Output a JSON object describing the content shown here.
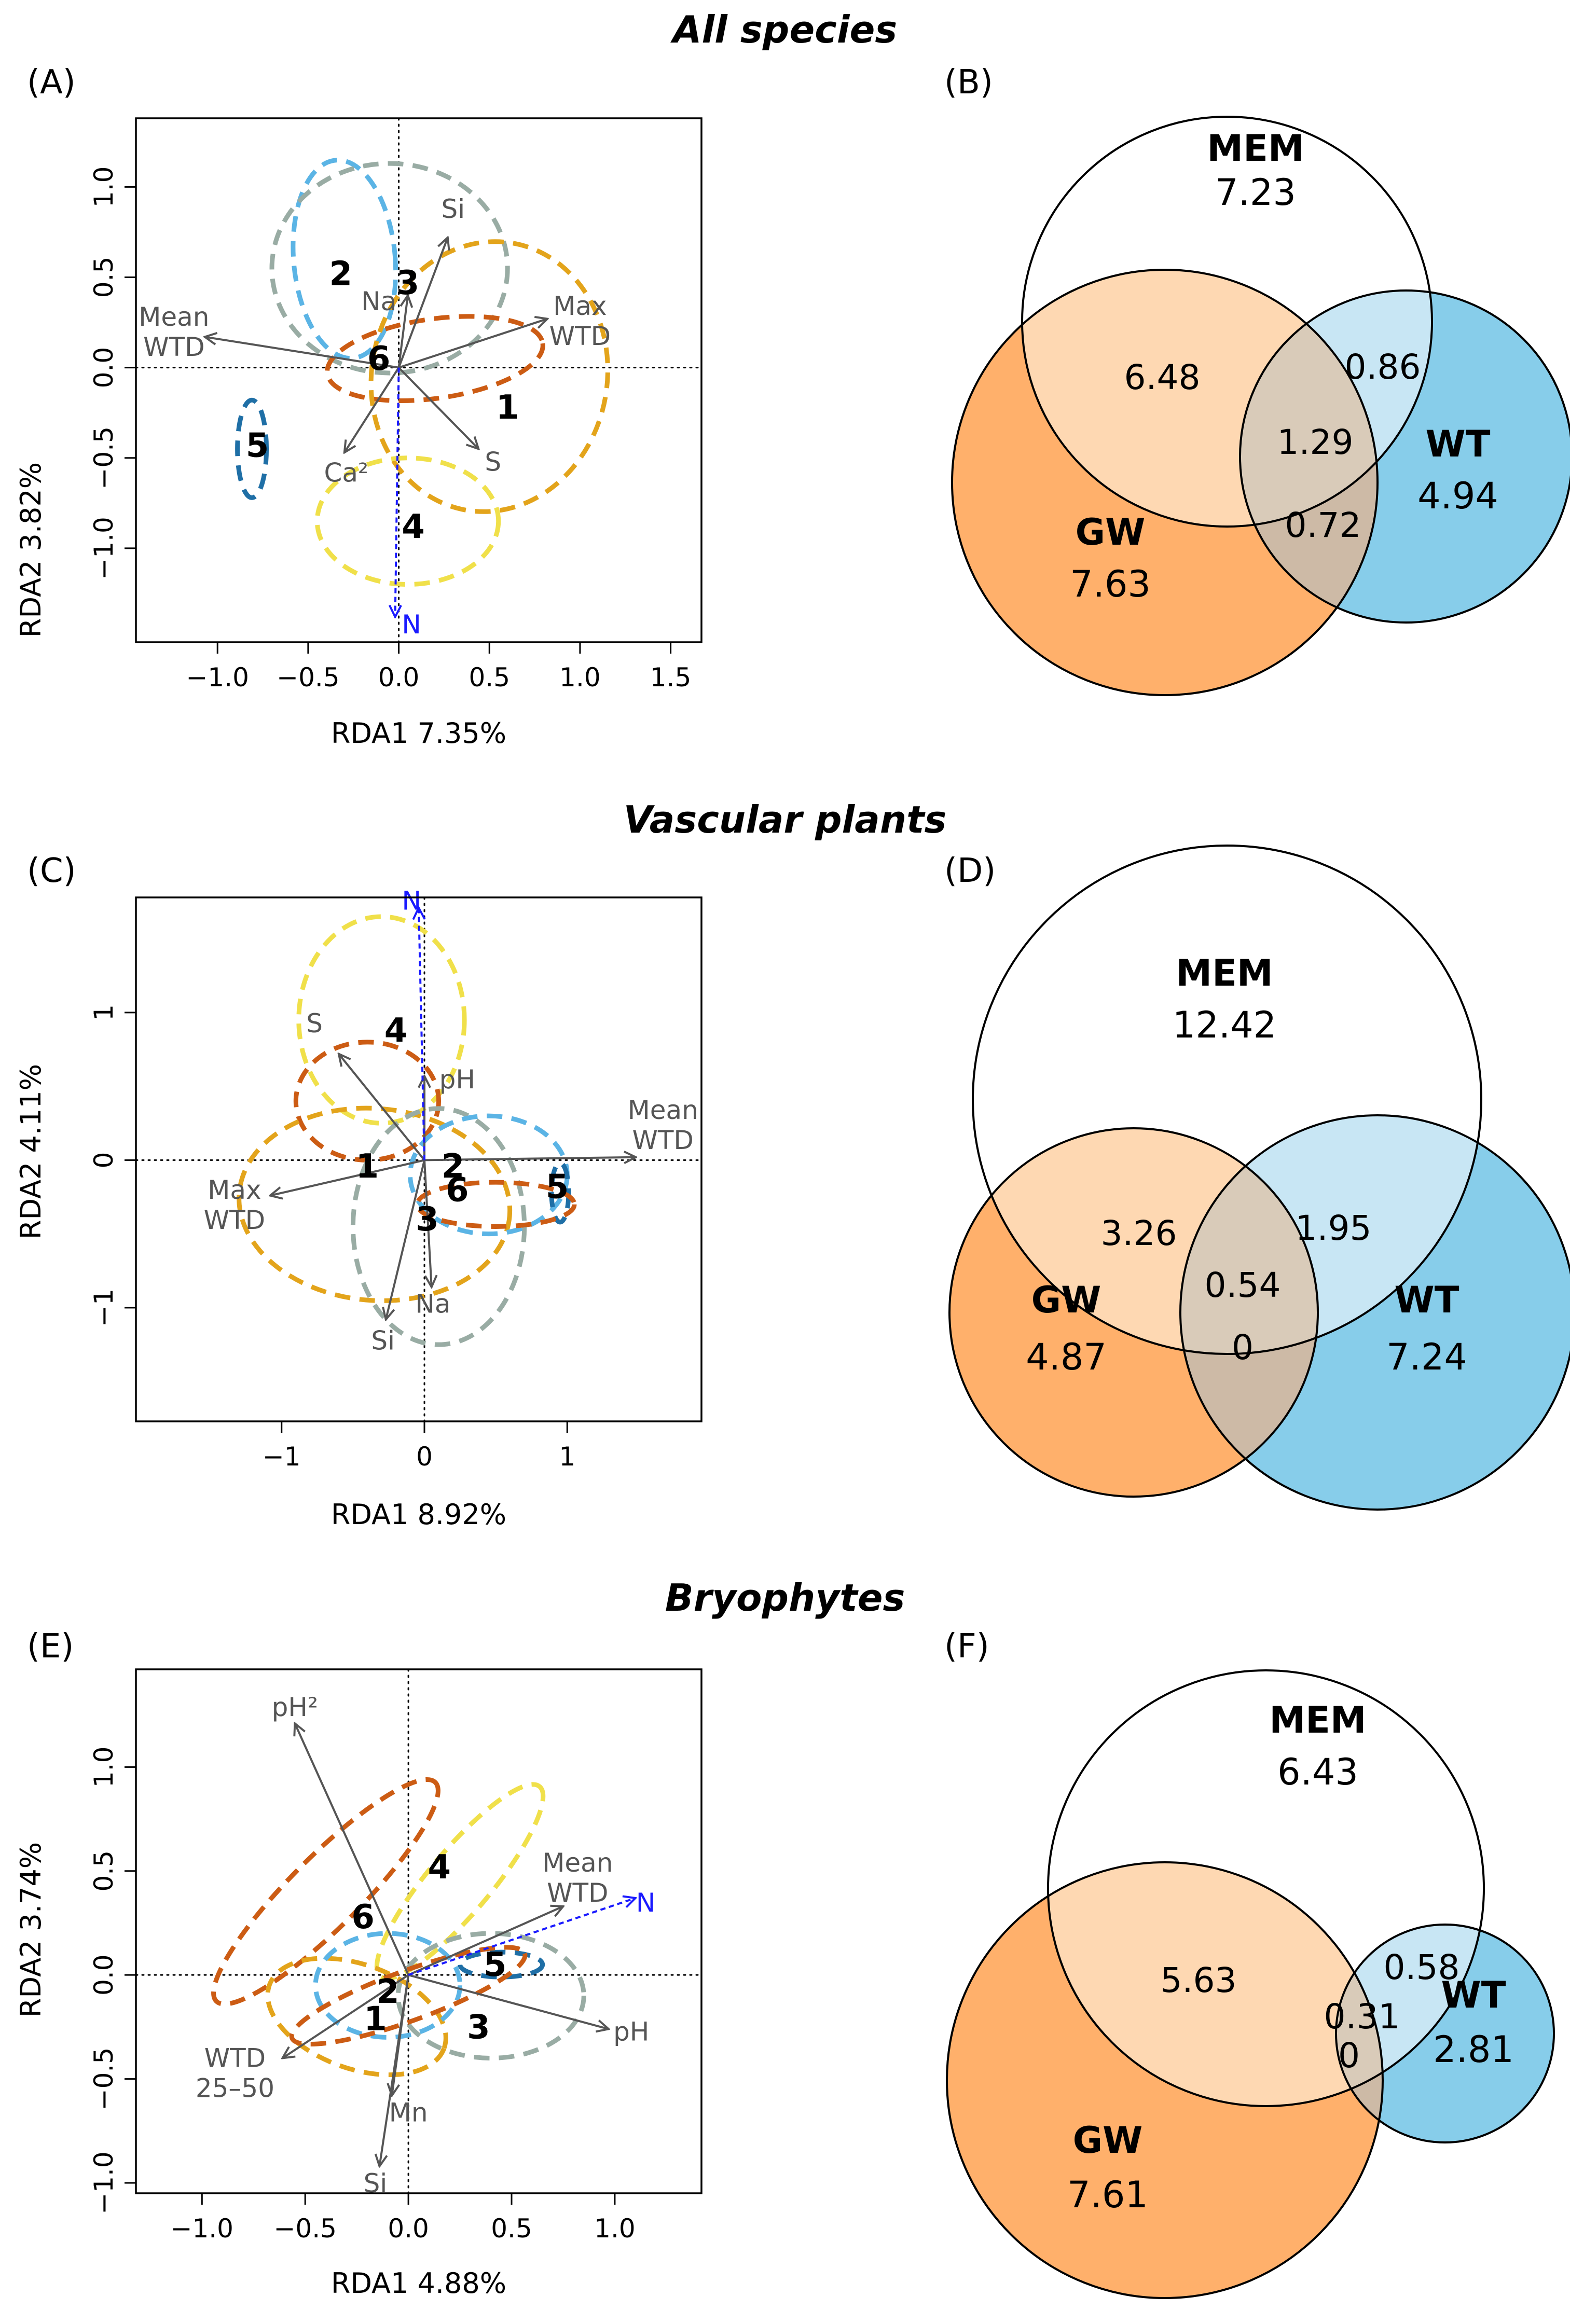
{
  "section_titles": [
    "All species",
    "Vascular plants",
    "Bryophytes"
  ],
  "panel_letters": [
    "(A)",
    "(B)",
    "(C)",
    "(D)",
    "(E)",
    "(F)"
  ],
  "colors": {
    "axis": "#000000",
    "arrow": "#555555",
    "N_arrow": "#1a1aff",
    "GW_fill": "#ffb06b",
    "WT_fill": "#87cdea",
    "MEM_fill": "#ffffff",
    "GW_MEM_fill": "#fed8b2",
    "MEM_WT_fill": "#c8e6f4",
    "GW_WT_fill": "#cdbaa6",
    "all_three_fill": "#d9cbb9",
    "groups": {
      "1": "#e3a41b",
      "2": "#5bb4e5",
      "3": "#99aca4",
      "4": "#f0e04a",
      "5": "#1f6fa6",
      "6": "#cc5c14"
    }
  },
  "chart_data": [
    {
      "panel": "(A)",
      "type": "scatter",
      "subtype": "rda-biplot",
      "title": "All species",
      "xlabel": "RDA1 7.35%",
      "ylabel": "RDA2 3.82%",
      "xlim": [
        -1.45,
        1.67
      ],
      "ylim": [
        -1.52,
        1.38
      ],
      "xticks": [
        -1.0,
        -0.5,
        0.0,
        0.5,
        1.0,
        1.5
      ],
      "xtick_labels": [
        "−1.0",
        "−0.5",
        "0.0",
        "0.5",
        "1.0",
        "1.5"
      ],
      "yticks": [
        -1.0,
        -0.5,
        0.0,
        0.5,
        1.0
      ],
      "ytick_labels": [
        "−1.0",
        "−0.5",
        "0.0",
        "0.5",
        "1.0"
      ],
      "arrows": [
        {
          "label": [
            "Mean",
            "WTD"
          ],
          "x": -1.07,
          "y": 0.17,
          "lx": -1.24,
          "ly": 0.2,
          "color": "arrow",
          "dashed": false
        },
        {
          "label": [
            "Max",
            "WTD"
          ],
          "x": 0.82,
          "y": 0.27,
          "lx": 1.0,
          "ly": 0.26,
          "color": "arrow",
          "dashed": false
        },
        {
          "label": [
            "Si"
          ],
          "x": 0.27,
          "y": 0.72,
          "lx": 0.3,
          "ly": 0.88,
          "color": "arrow",
          "dashed": false
        },
        {
          "label": [
            "Na"
          ],
          "x": 0.05,
          "y": 0.4,
          "lx": -0.11,
          "ly": 0.37,
          "color": "arrow",
          "dashed": false
        },
        {
          "label": [
            "S"
          ],
          "x": 0.44,
          "y": -0.45,
          "lx": 0.52,
          "ly": -0.52,
          "color": "arrow",
          "dashed": false
        },
        {
          "label": [
            "Ca²"
          ],
          "x": -0.3,
          "y": -0.47,
          "lx": -0.29,
          "ly": -0.58,
          "color": "arrow",
          "dashed": false
        },
        {
          "label": [
            "N"
          ],
          "x": -0.02,
          "y": -1.38,
          "lx": 0.07,
          "ly": -1.42,
          "color": "N_arrow",
          "dashed": true
        }
      ],
      "ellipses": [
        {
          "group": "2",
          "cx": -0.3,
          "cy": 0.6,
          "rx": 0.28,
          "ry": 0.55,
          "rot": -5
        },
        {
          "group": "3",
          "cx": -0.05,
          "cy": 0.55,
          "rx": 0.65,
          "ry": 0.58,
          "rot": 0
        },
        {
          "group": "6",
          "cx": 0.2,
          "cy": 0.05,
          "rx": 0.6,
          "ry": 0.22,
          "rot": -8
        },
        {
          "group": "1",
          "cx": 0.5,
          "cy": -0.05,
          "rx": 0.65,
          "ry": 0.75,
          "rot": 10
        },
        {
          "group": "4",
          "cx": 0.05,
          "cy": -0.85,
          "rx": 0.5,
          "ry": 0.35,
          "rot": 0
        },
        {
          "group": "5",
          "cx": -0.81,
          "cy": -0.45,
          "rx": 0.08,
          "ry": 0.27,
          "rot": 0
        }
      ],
      "group_labels": [
        {
          "text": "1",
          "x": 0.6,
          "y": -0.22
        },
        {
          "text": "2",
          "x": -0.32,
          "y": 0.52
        },
        {
          "text": "3",
          "x": 0.05,
          "y": 0.47
        },
        {
          "text": "4",
          "x": 0.08,
          "y": -0.88
        },
        {
          "text": "5",
          "x": -0.78,
          "y": -0.43
        },
        {
          "text": "6",
          "x": -0.11,
          "y": 0.05
        }
      ]
    },
    {
      "panel": "(C)",
      "type": "scatter",
      "subtype": "rda-biplot",
      "title": "Vascular plants",
      "xlabel": "RDA1 8.92%",
      "ylabel": "RDA2 4.11%",
      "xlim": [
        -2.02,
        1.94
      ],
      "ylim": [
        -1.77,
        1.78
      ],
      "xticks": [
        -1,
        0,
        1
      ],
      "xtick_labels": [
        "−1",
        "0",
        "1"
      ],
      "yticks": [
        -1,
        0,
        1
      ],
      "ytick_labels": [
        "−1",
        "0",
        "1"
      ],
      "arrows": [
        {
          "label": [
            "Mean",
            "WTD"
          ],
          "x": 1.48,
          "y": 0.02,
          "lx": 1.67,
          "ly": 0.24,
          "color": "arrow",
          "dashed": false
        },
        {
          "label": [
            "Max",
            "WTD"
          ],
          "x": -1.08,
          "y": -0.24,
          "lx": -1.33,
          "ly": -0.3,
          "color": "arrow",
          "dashed": false
        },
        {
          "label": [
            "S"
          ],
          "x": -0.6,
          "y": 0.72,
          "lx": -0.77,
          "ly": 0.93,
          "color": "arrow",
          "dashed": false
        },
        {
          "label": [
            "pH"
          ],
          "x": 0.0,
          "y": 0.57,
          "lx": 0.23,
          "ly": 0.55,
          "color": "arrow",
          "dashed": false
        },
        {
          "label": [
            "Na"
          ],
          "x": 0.05,
          "y": -0.86,
          "lx": 0.06,
          "ly": -0.97,
          "color": "arrow",
          "dashed": false
        },
        {
          "label": [
            "Si"
          ],
          "x": -0.27,
          "y": -1.08,
          "lx": -0.29,
          "ly": -1.22,
          "color": "arrow",
          "dashed": false
        },
        {
          "label": [
            "N"
          ],
          "x": -0.04,
          "y": 1.71,
          "lx": -0.09,
          "ly": 1.76,
          "color": "N_arrow",
          "dashed": true
        }
      ],
      "ellipses": [
        {
          "group": "4",
          "cx": -0.3,
          "cy": 0.95,
          "rx": 0.58,
          "ry": 0.7,
          "rot": 0
        },
        {
          "group": "6",
          "cx": -0.4,
          "cy": 0.4,
          "rx": 0.5,
          "ry": 0.4,
          "rot": 0
        },
        {
          "group": "1",
          "cx": -0.35,
          "cy": -0.3,
          "rx": 0.95,
          "ry": 0.65,
          "rot": 5
        },
        {
          "group": "3",
          "cx": 0.1,
          "cy": -0.45,
          "rx": 0.6,
          "ry": 0.8,
          "rot": 0
        },
        {
          "group": "2",
          "cx": 0.45,
          "cy": -0.1,
          "rx": 0.55,
          "ry": 0.4,
          "rot": 0
        },
        {
          "group": "5",
          "cx": 0.95,
          "cy": -0.22,
          "rx": 0.06,
          "ry": 0.2,
          "rot": 0
        },
        {
          "group": "6",
          "cx": 0.5,
          "cy": -0.3,
          "rx": 0.55,
          "ry": 0.15,
          "rot": 0
        }
      ],
      "group_labels": [
        {
          "text": "1",
          "x": -0.4,
          "y": -0.04
        },
        {
          "text": "2",
          "x": 0.2,
          "y": -0.04
        },
        {
          "text": "3",
          "x": 0.02,
          "y": -0.4
        },
        {
          "text": "4",
          "x": -0.2,
          "y": 0.88
        },
        {
          "text": "5",
          "x": 0.93,
          "y": -0.18
        },
        {
          "text": "6",
          "x": 0.23,
          "y": -0.2
        }
      ]
    },
    {
      "panel": "(E)",
      "type": "scatter",
      "subtype": "rda-biplot",
      "title": "Bryophytes",
      "xlabel": "RDA1 4.88%",
      "ylabel": "RDA2 3.74%",
      "xlim": [
        -1.32,
        1.42
      ],
      "ylim": [
        -1.05,
        1.47
      ],
      "xticks": [
        -1.0,
        -0.5,
        0.0,
        0.5,
        1.0
      ],
      "xtick_labels": [
        "−1.0",
        "−0.5",
        "0.0",
        "0.5",
        "1.0"
      ],
      "yticks": [
        -1.0,
        -0.5,
        0.0,
        0.5,
        1.0
      ],
      "ytick_labels": [
        "−1.0",
        "−0.5",
        "0.0",
        "0.5",
        "1.0"
      ],
      "arrows": [
        {
          "label": [
            "pH²"
          ],
          "x": -0.55,
          "y": 1.21,
          "lx": -0.55,
          "ly": 1.29,
          "color": "arrow",
          "dashed": false
        },
        {
          "label": [
            "Mean",
            "WTD"
          ],
          "x": 0.75,
          "y": 0.33,
          "lx": 0.82,
          "ly": 0.47,
          "color": "arrow",
          "dashed": false
        },
        {
          "label": [
            "pH"
          ],
          "x": 0.97,
          "y": -0.26,
          "lx": 1.08,
          "ly": -0.27,
          "color": "arrow",
          "dashed": false
        },
        {
          "label": [
            "WTD",
            "25–50"
          ],
          "x": -0.61,
          "y": -0.4,
          "lx": -0.84,
          "ly": -0.47,
          "color": "arrow",
          "dashed": false
        },
        {
          "label": [
            "Mn"
          ],
          "x": -0.08,
          "y": -0.58,
          "lx": 0.0,
          "ly": -0.66,
          "color": "arrow",
          "dashed": false
        },
        {
          "label": [
            "Si"
          ],
          "x": -0.14,
          "y": -0.92,
          "lx": -0.16,
          "ly": -1.0,
          "color": "arrow",
          "dashed": false
        },
        {
          "label": [
            "N"
          ],
          "x": 1.1,
          "y": 0.37,
          "lx": 1.15,
          "ly": 0.35,
          "color": "N_arrow",
          "dashed": true
        }
      ],
      "ellipses": [
        {
          "group": "6",
          "cx": -0.4,
          "cy": 0.4,
          "rx": 0.75,
          "ry": 0.17,
          "rot": -45
        },
        {
          "group": "4",
          "cx": 0.25,
          "cy": 0.45,
          "rx": 0.6,
          "ry": 0.15,
          "rot": -50
        },
        {
          "group": "3",
          "cx": 0.4,
          "cy": -0.1,
          "rx": 0.45,
          "ry": 0.3,
          "rot": 0
        },
        {
          "group": "1",
          "cx": -0.25,
          "cy": -0.2,
          "rx": 0.45,
          "ry": 0.25,
          "rot": 20
        },
        {
          "group": "2",
          "cx": -0.1,
          "cy": -0.05,
          "rx": 0.35,
          "ry": 0.25,
          "rot": 0
        },
        {
          "group": "5",
          "cx": 0.45,
          "cy": 0.05,
          "rx": 0.2,
          "ry": 0.06,
          "rot": 0
        },
        {
          "group": "6",
          "cx": 0.0,
          "cy": -0.1,
          "rx": 0.6,
          "ry": 0.12,
          "rot": -20
        }
      ],
      "group_labels": [
        {
          "text": "1",
          "x": -0.16,
          "y": -0.21
        },
        {
          "text": "2",
          "x": -0.1,
          "y": -0.08
        },
        {
          "text": "3",
          "x": 0.34,
          "y": -0.25
        },
        {
          "text": "4",
          "x": 0.15,
          "y": 0.52
        },
        {
          "text": "5",
          "x": 0.42,
          "y": 0.05
        },
        {
          "text": "6",
          "x": -0.22,
          "y": 0.28
        }
      ]
    },
    {
      "panel": "(B)",
      "type": "venn",
      "sets": [
        {
          "name": "MEM",
          "value": "7.23"
        },
        {
          "name": "GW",
          "value": "7.63"
        },
        {
          "name": "WT",
          "value": "4.94"
        }
      ],
      "intersections": {
        "GW_MEM": "6.48",
        "MEM_WT": "0.86",
        "GW_WT": "0.72",
        "all": "1.29"
      }
    },
    {
      "panel": "(D)",
      "type": "venn",
      "sets": [
        {
          "name": "MEM",
          "value": "12.42"
        },
        {
          "name": "GW",
          "value": "4.87"
        },
        {
          "name": "WT",
          "value": "7.24"
        }
      ],
      "intersections": {
        "GW_MEM": "3.26",
        "MEM_WT": "1.95",
        "GW_WT": "0",
        "all": "0.54"
      }
    },
    {
      "panel": "(F)",
      "type": "venn",
      "sets": [
        {
          "name": "MEM",
          "value": "6.43"
        },
        {
          "name": "GW",
          "value": "7.61"
        },
        {
          "name": "WT",
          "value": "2.81"
        }
      ],
      "intersections": {
        "GW_MEM": "5.63",
        "MEM_WT": "0.58",
        "GW_WT": "0",
        "all": "0.31"
      }
    }
  ]
}
